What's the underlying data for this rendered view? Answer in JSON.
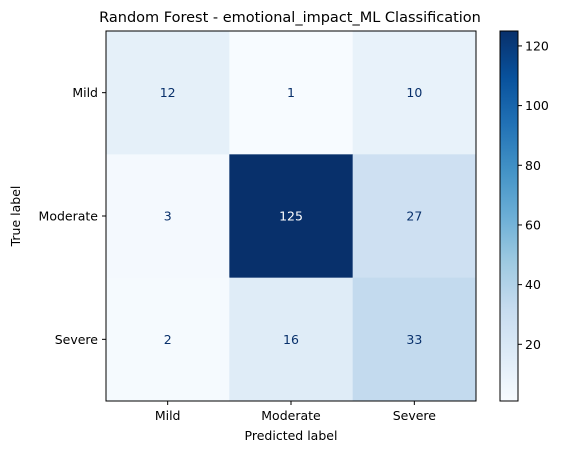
{
  "chart_data": {
    "type": "heatmap",
    "title": "Random Forest - emotional_impact_ML Classification",
    "xlabel": "Predicted label",
    "ylabel": "True label",
    "x_categories": [
      "Mild",
      "Moderate",
      "Severe"
    ],
    "y_categories": [
      "Mild",
      "Moderate",
      "Severe"
    ],
    "matrix": [
      [
        12,
        1,
        10
      ],
      [
        3,
        125,
        27
      ],
      [
        2,
        16,
        33
      ]
    ],
    "colormap": "Blues",
    "colorbar": {
      "range": [
        1,
        125
      ],
      "ticks": [
        20,
        40,
        60,
        80,
        100,
        120
      ]
    },
    "grid": false
  }
}
